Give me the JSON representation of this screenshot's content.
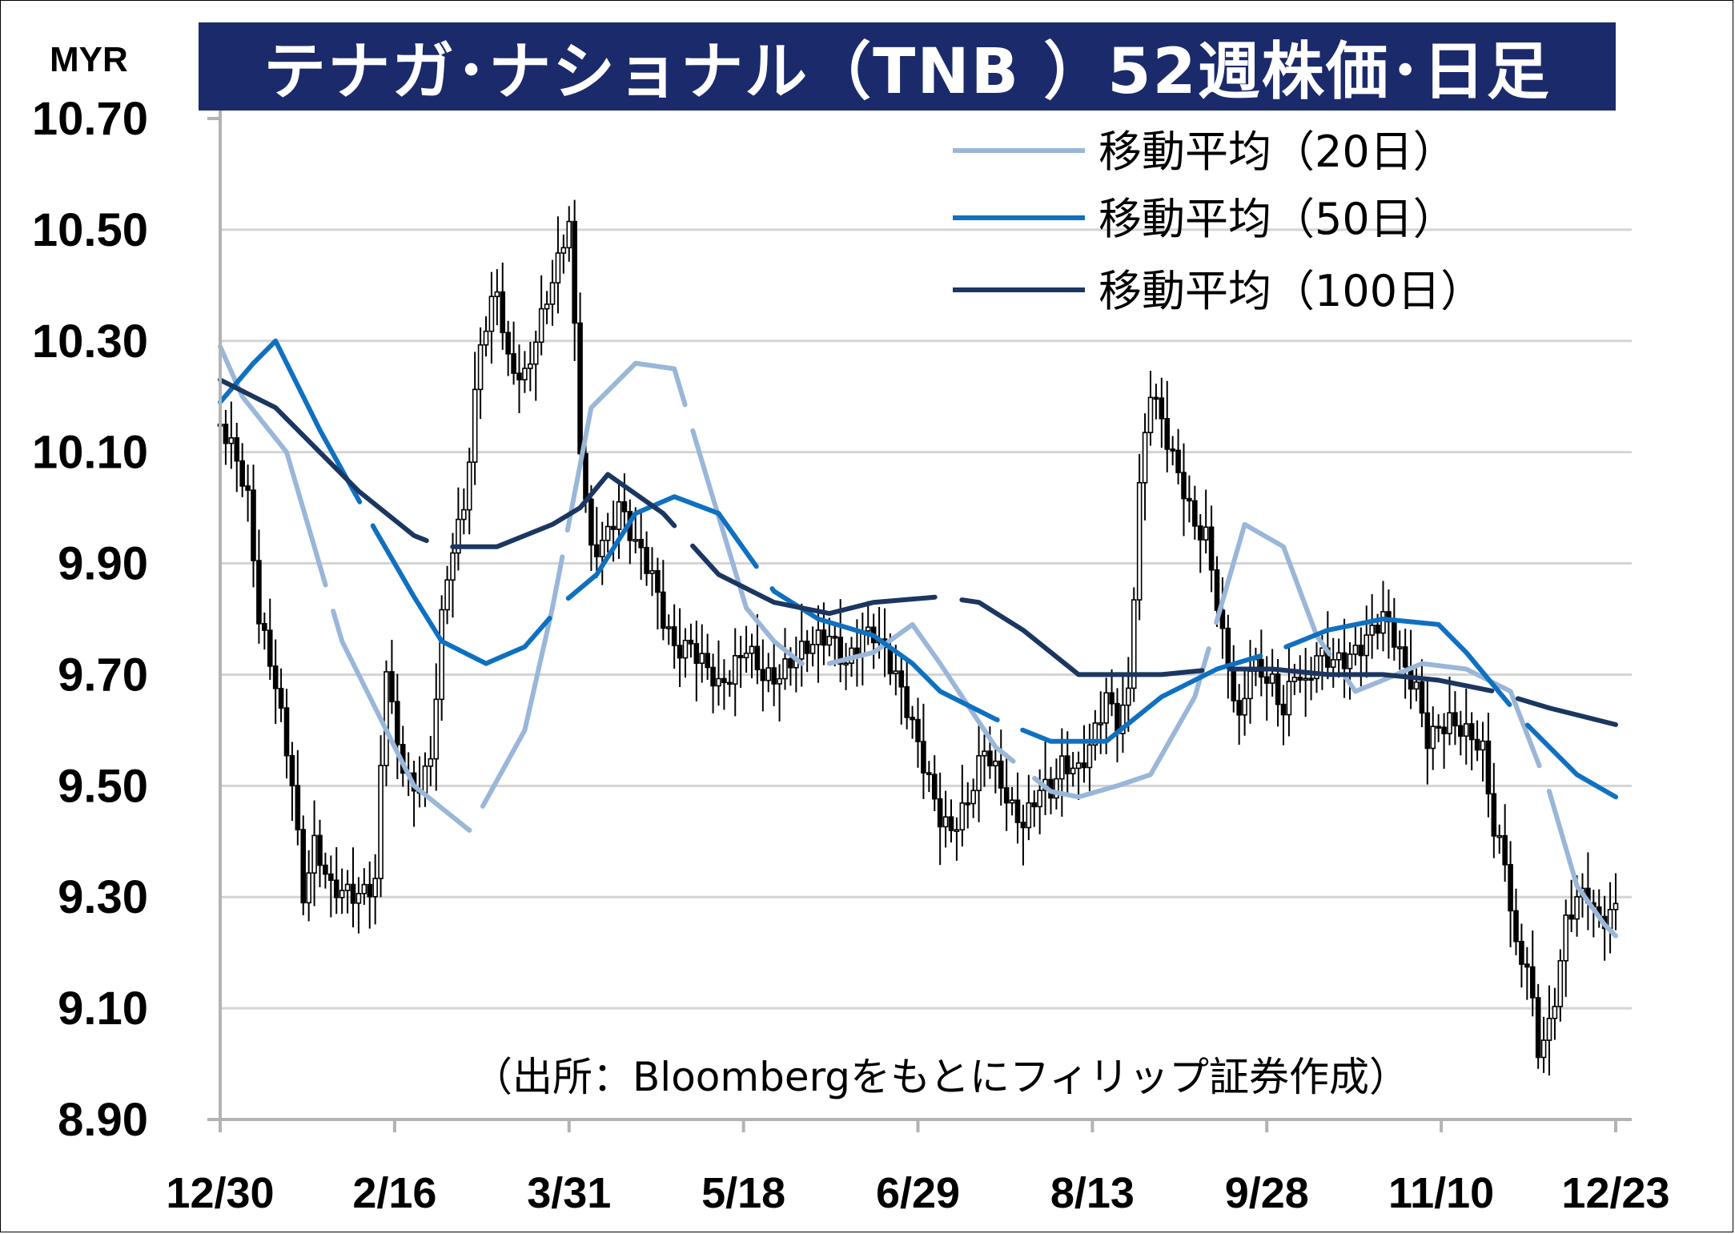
{
  "chart_data": {
    "type": "candlestick",
    "title": "テナガ･ナショナル（TNB ）52週株価･日足",
    "unit": "MYR",
    "ylim": [
      8.9,
      10.7
    ],
    "y_ticks": [
      "10.70",
      "10.50",
      "10.30",
      "10.10",
      "9.90",
      "9.70",
      "9.50",
      "9.30",
      "9.10",
      "8.90"
    ],
    "x_ticks": [
      "12/30",
      "2/16",
      "3/31",
      "5/18",
      "6/29",
      "8/13",
      "9/28",
      "11/10",
      "12/23"
    ],
    "grid": true,
    "legend_position": "top-right",
    "source": "（出所：Bloombergをもとにフィリップ証券作成）",
    "series": [
      {
        "name": "移動平均（20日）",
        "color": "#9ab6d8",
        "x": [
          0,
          4,
          12,
          22,
          35,
          45,
          55,
          60,
          67,
          75,
          82,
          88,
          95,
          100,
          105,
          110,
          118,
          125,
          130,
          140,
          150,
          155,
          162,
          168,
          176,
          185,
          192,
          198,
          205,
          210,
          217,
          225,
          233,
          240,
          245,
          250,
          252
        ],
        "values": [
          10.29,
          10.2,
          10.1,
          9.76,
          9.5,
          9.42,
          9.6,
          9.82,
          10.18,
          10.26,
          10.25,
          10.05,
          9.82,
          9.76,
          9.72,
          9.72,
          9.74,
          9.79,
          9.72,
          9.57,
          9.49,
          9.48,
          9.5,
          9.52,
          9.66,
          9.97,
          9.93,
          9.77,
          9.67,
          9.69,
          9.72,
          9.71,
          9.67,
          9.49,
          9.32,
          9.25,
          9.23
        ]
      },
      {
        "name": "移動平均（50日）",
        "color": "#1070c0",
        "x": [
          0,
          6,
          10,
          18,
          28,
          35,
          40,
          48,
          55,
          62,
          68,
          75,
          82,
          90,
          95,
          100,
          108,
          118,
          125,
          130,
          140,
          150,
          160,
          165,
          170,
          180,
          190,
          200,
          210,
          220,
          225,
          230,
          235,
          240,
          245,
          252
        ],
        "values": [
          10.19,
          10.26,
          10.3,
          10.14,
          9.96,
          9.84,
          9.76,
          9.72,
          9.75,
          9.83,
          9.88,
          9.99,
          10.02,
          9.99,
          9.92,
          9.85,
          9.8,
          9.77,
          9.72,
          9.67,
          9.62,
          9.58,
          9.58,
          9.62,
          9.66,
          9.71,
          9.74,
          9.78,
          9.8,
          9.79,
          9.74,
          9.68,
          9.62,
          9.57,
          9.52,
          9.48
        ]
      },
      {
        "name": "移動平均（100日）",
        "color": "#1b3660",
        "x": [
          0,
          10,
          18,
          25,
          35,
          40,
          45,
          50,
          60,
          65,
          70,
          80,
          90,
          100,
          110,
          118,
          130,
          137,
          145,
          155,
          165,
          170,
          180,
          190,
          200,
          210,
          220,
          230,
          240,
          252
        ],
        "values": [
          10.23,
          10.18,
          10.1,
          10.03,
          9.95,
          9.93,
          9.93,
          9.93,
          9.97,
          10.0,
          10.06,
          9.99,
          9.88,
          9.83,
          9.81,
          9.83,
          9.84,
          9.83,
          9.78,
          9.7,
          9.7,
          9.7,
          9.71,
          9.71,
          9.7,
          9.7,
          9.69,
          9.67,
          9.64,
          9.61
        ]
      }
    ],
    "daily_ohlc_control_points": {
      "note": "closing-price path read off the candlesticks, day index vs MYR",
      "x": [
        0,
        3,
        5,
        7,
        10,
        13,
        15,
        17,
        20,
        22,
        25,
        28,
        30,
        32,
        35,
        38,
        40,
        42,
        44,
        47,
        50,
        52,
        55,
        57,
        59,
        61,
        63,
        65,
        67,
        70,
        72,
        75,
        78,
        80,
        82,
        85,
        88,
        90,
        92,
        95,
        98,
        100,
        103,
        107,
        110,
        113,
        116,
        118,
        120,
        122,
        125,
        128,
        130,
        132,
        135,
        138,
        140,
        143,
        145,
        148,
        150,
        152,
        155,
        157,
        160,
        162,
        164,
        166,
        168,
        170,
        172,
        174,
        176,
        178,
        181,
        184,
        186,
        188,
        190,
        192,
        194,
        196,
        198,
        201,
        204,
        207,
        210,
        212,
        214,
        216,
        218,
        220,
        222,
        225,
        228,
        230,
        232,
        234,
        236,
        238,
        240,
        241,
        243,
        245,
        247,
        249,
        251
      ],
      "close": [
        10.15,
        10.07,
        10.0,
        9.8,
        9.7,
        9.52,
        9.3,
        9.38,
        9.3,
        9.31,
        9.32,
        9.34,
        9.72,
        9.55,
        9.47,
        9.55,
        9.82,
        9.95,
        10.0,
        10.28,
        10.38,
        10.26,
        10.25,
        10.32,
        10.38,
        10.43,
        10.5,
        10.1,
        9.92,
        9.97,
        10.02,
        9.93,
        9.86,
        9.79,
        9.75,
        9.77,
        9.72,
        9.67,
        9.68,
        9.74,
        9.71,
        9.71,
        9.73,
        9.74,
        9.76,
        9.73,
        9.79,
        9.78,
        9.73,
        9.68,
        9.6,
        9.52,
        9.46,
        9.43,
        9.46,
        9.55,
        9.52,
        9.47,
        9.45,
        9.5,
        9.48,
        9.52,
        9.52,
        9.58,
        9.68,
        9.62,
        9.66,
        10.02,
        10.2,
        10.15,
        10.1,
        10.05,
        9.98,
        9.95,
        9.75,
        9.6,
        9.72,
        9.72,
        9.7,
        9.64,
        9.7,
        9.66,
        9.72,
        9.73,
        9.75,
        9.77,
        9.79,
        9.75,
        9.7,
        9.68,
        9.6,
        9.62,
        9.62,
        9.58,
        9.55,
        9.42,
        9.38,
        9.22,
        9.19,
        9.02,
        9.05,
        9.1,
        9.24,
        9.3,
        9.32,
        9.27,
        9.28
      ]
    }
  },
  "legend": [
    {
      "label": "移動平均（20日）",
      "color": "#9ab6d8"
    },
    {
      "label": "移動平均（50日）",
      "color": "#1070c0"
    },
    {
      "label": "移動平均（100日）",
      "color": "#1b3660"
    }
  ]
}
